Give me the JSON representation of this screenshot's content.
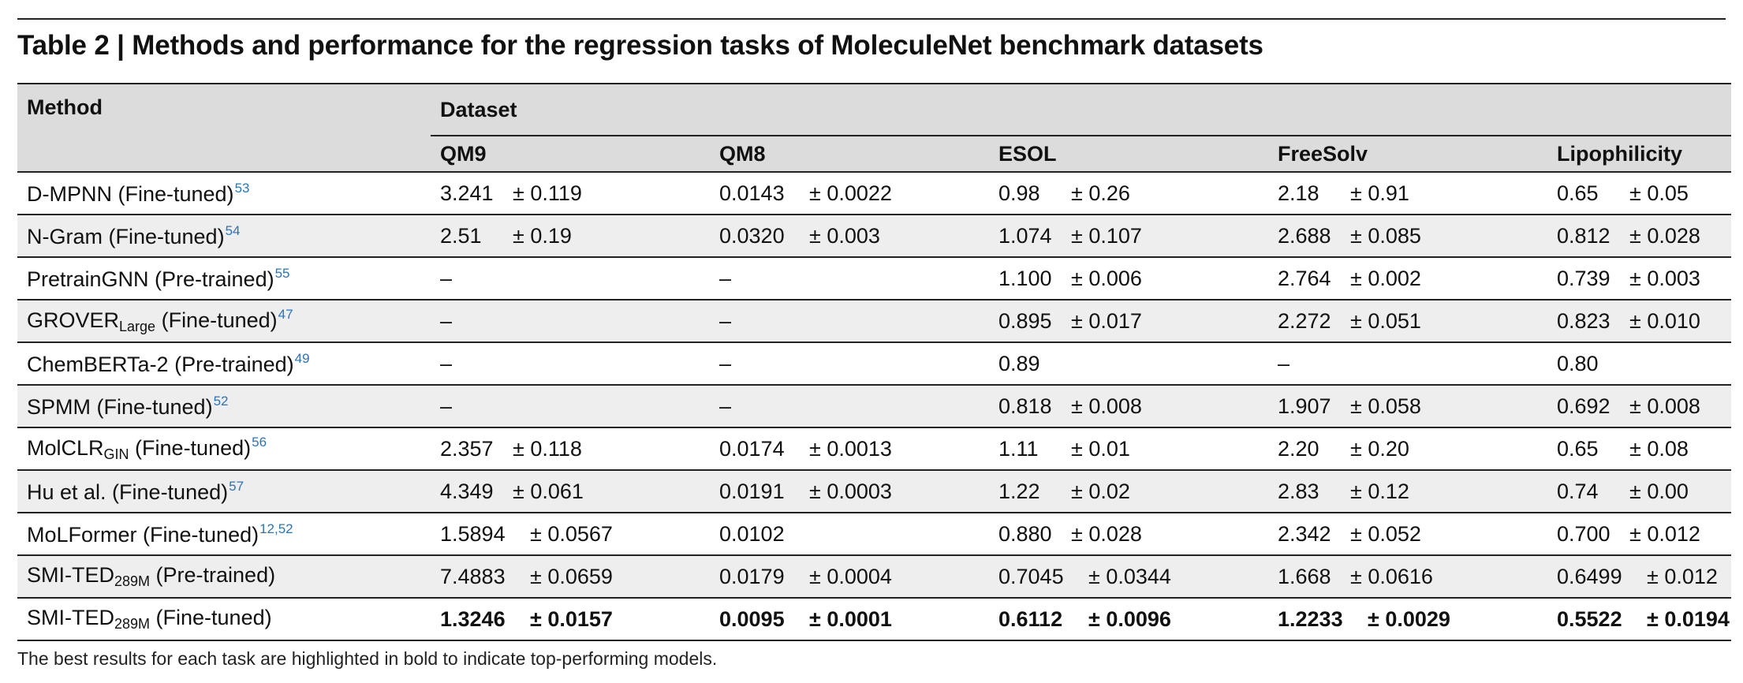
{
  "title": "Table 2 | Methods and performance for the regression tasks of MoleculeNet benchmark datasets",
  "header": {
    "method": "Method",
    "dataset": "Dataset",
    "columns": [
      "QM9",
      "QM8",
      "ESOL",
      "FreeSolv",
      "Lipophilicity"
    ]
  },
  "rows": [
    {
      "name": "D-MPNN (Fine-tuned)",
      "ref": "53",
      "cells": [
        {
          "v": "3.241",
          "e": "± 0.119"
        },
        {
          "v": "0.0143",
          "e": "± 0.0022"
        },
        {
          "v": "0.98",
          "e": "± 0.26"
        },
        {
          "v": "2.18",
          "e": "± 0.91"
        },
        {
          "v": "0.65",
          "e": "± 0.05"
        }
      ]
    },
    {
      "name": "N-Gram (Fine-tuned)",
      "ref": "54",
      "cells": [
        {
          "v": "2.51",
          "e": "± 0.19"
        },
        {
          "v": "0.0320",
          "e": "± 0.003"
        },
        {
          "v": "1.074",
          "e": "± 0.107"
        },
        {
          "v": "2.688",
          "e": "± 0.085"
        },
        {
          "v": "0.812",
          "e": "± 0.028"
        }
      ]
    },
    {
      "name": "PretrainGNN (Pre-trained)",
      "ref": "55",
      "cells": [
        {
          "v": "–",
          "e": ""
        },
        {
          "v": "–",
          "e": ""
        },
        {
          "v": "1.100",
          "e": "± 0.006"
        },
        {
          "v": "2.764",
          "e": "± 0.002"
        },
        {
          "v": "0.739",
          "e": "± 0.003"
        }
      ]
    },
    {
      "name": "GROVER",
      "sub": "Large",
      "suffix": " (Fine-tuned)",
      "ref": "47",
      "cells": [
        {
          "v": "–",
          "e": ""
        },
        {
          "v": "–",
          "e": ""
        },
        {
          "v": "0.895",
          "e": "± 0.017"
        },
        {
          "v": "2.272",
          "e": "± 0.051"
        },
        {
          "v": "0.823",
          "e": "± 0.010"
        }
      ]
    },
    {
      "name": "ChemBERTa-2 (Pre-trained)",
      "ref": "49",
      "cells": [
        {
          "v": "–",
          "e": ""
        },
        {
          "v": "–",
          "e": ""
        },
        {
          "v": "0.89",
          "e": ""
        },
        {
          "v": "–",
          "e": ""
        },
        {
          "v": "0.80",
          "e": ""
        }
      ]
    },
    {
      "name": "SPMM (Fine-tuned)",
      "ref": "52",
      "cells": [
        {
          "v": "–",
          "e": ""
        },
        {
          "v": "–",
          "e": ""
        },
        {
          "v": "0.818",
          "e": "± 0.008"
        },
        {
          "v": "1.907",
          "e": "± 0.058"
        },
        {
          "v": "0.692",
          "e": "± 0.008"
        }
      ]
    },
    {
      "name": "MolCLR",
      "sub": "GIN",
      "suffix": " (Fine-tuned)",
      "ref": "56",
      "cells": [
        {
          "v": "2.357",
          "e": "± 0.118"
        },
        {
          "v": "0.0174",
          "e": "± 0.0013"
        },
        {
          "v": "1.11",
          "e": "± 0.01"
        },
        {
          "v": "2.20",
          "e": "± 0.20"
        },
        {
          "v": "0.65",
          "e": "± 0.08"
        }
      ]
    },
    {
      "name": "Hu et al. (Fine-tuned)",
      "ref": "57",
      "cells": [
        {
          "v": "4.349",
          "e": "± 0.061"
        },
        {
          "v": "0.0191",
          "e": "± 0.0003"
        },
        {
          "v": "1.22",
          "e": "± 0.02"
        },
        {
          "v": "2.83",
          "e": "± 0.12"
        },
        {
          "v": "0.74",
          "e": "± 0.00"
        }
      ]
    },
    {
      "name": "MoLFormer (Fine-tuned)",
      "ref": "12,52",
      "cells": [
        {
          "v": "1.5894",
          "e": "± 0.0567"
        },
        {
          "v": "0.0102",
          "e": ""
        },
        {
          "v": "0.880",
          "e": "± 0.028"
        },
        {
          "v": "2.342",
          "e": "± 0.052"
        },
        {
          "v": "0.700",
          "e": "± 0.012"
        }
      ]
    },
    {
      "name": "SMI-TED",
      "sub": "289M",
      "suffix": " (Pre-trained)",
      "ref": "",
      "cells": [
        {
          "v": "7.4883",
          "e": "± 0.0659"
        },
        {
          "v": "0.0179",
          "e": "± 0.0004"
        },
        {
          "v": "0.7045",
          "e": "± 0.0344"
        },
        {
          "v": "1.668",
          "e": "± 0.0616"
        },
        {
          "v": "0.6499",
          "e": "± 0.012"
        }
      ]
    },
    {
      "name": "SMI-TED",
      "sub": "289M",
      "suffix": " (Fine-tuned)",
      "ref": "",
      "bold": true,
      "cells": [
        {
          "v": "1.3246",
          "e": "± 0.0157"
        },
        {
          "v": "0.0095",
          "e": "± 0.0001"
        },
        {
          "v": "0.6112",
          "e": "± 0.0096"
        },
        {
          "v": "1.2233",
          "e": "± 0.0029"
        },
        {
          "v": "0.5522",
          "e": "± 0.0194"
        }
      ]
    }
  ],
  "footnote": "The best results for each task are highlighted in bold to indicate top-performing models."
}
